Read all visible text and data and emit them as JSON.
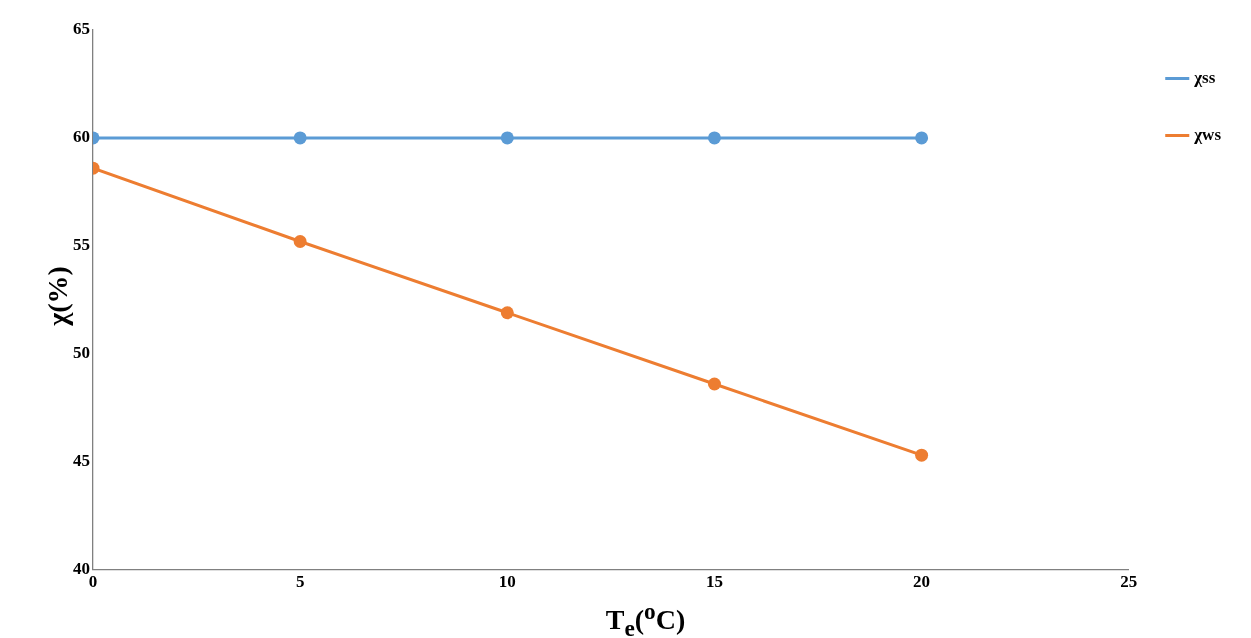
{
  "chart_data": {
    "type": "line",
    "xlabel": "T$_{e}$($^{o}$C)",
    "ylabel": "χ(%)",
    "x": [
      0,
      5,
      10,
      15,
      20
    ],
    "series": [
      {
        "name": "χss",
        "color": "#5b9bd5",
        "values": [
          60,
          60,
          60,
          60,
          60
        ]
      },
      {
        "name": "χws",
        "color": "#ed7d31",
        "values": [
          58.6,
          55.2,
          51.9,
          48.6,
          45.3
        ]
      }
    ],
    "xlim": [
      0,
      25
    ],
    "xticks": [
      0,
      5,
      10,
      15,
      20,
      25
    ],
    "ylim": [
      40,
      65
    ],
    "yticks": [
      40,
      45,
      50,
      55,
      60,
      65
    ],
    "grid": false,
    "legend": "top right",
    "marker": "circle",
    "line_style": "solid"
  }
}
